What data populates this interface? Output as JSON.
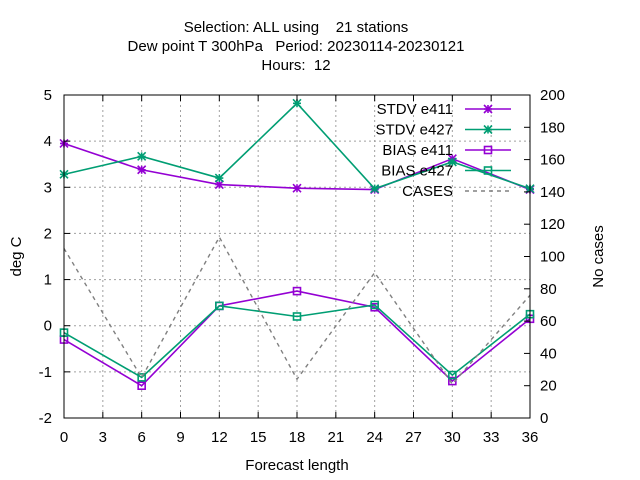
{
  "chart_data": {
    "type": "line",
    "title_lines": [
      "Selection: ALL using    21 stations",
      "Dew point T 300hPa   Period: 20230114-20230121",
      "Hours:  12"
    ],
    "xlabel": "Forecast length",
    "ylabel": "deg C",
    "y2label": "No cases",
    "x": [
      0,
      6,
      12,
      18,
      24,
      30,
      36
    ],
    "xlim": [
      0,
      36
    ],
    "xticks": [
      0,
      3,
      6,
      9,
      12,
      15,
      18,
      21,
      24,
      27,
      30,
      33,
      36
    ],
    "ylim": [
      -2,
      5
    ],
    "yticks": [
      -2,
      -1,
      0,
      1,
      2,
      3,
      4,
      5
    ],
    "y2lim": [
      0,
      200
    ],
    "y2ticks": [
      0,
      20,
      40,
      60,
      80,
      100,
      120,
      140,
      160,
      180,
      200
    ],
    "grid": true,
    "legend_position": "top-right",
    "series": [
      {
        "name": "STDV e411",
        "axis": "y",
        "color": "#9400d3",
        "marker": "x",
        "values": [
          3.95,
          3.38,
          3.06,
          2.98,
          2.95,
          3.62,
          2.95
        ]
      },
      {
        "name": "STDV e427",
        "axis": "y",
        "color": "#009e73",
        "marker": "x",
        "values": [
          3.28,
          3.67,
          3.2,
          4.82,
          2.97,
          3.55,
          2.97
        ]
      },
      {
        "name": "BIAS e411",
        "axis": "y",
        "color": "#9400d3",
        "marker": "square",
        "values": [
          -0.3,
          -1.3,
          0.43,
          0.75,
          0.4,
          -1.2,
          0.15
        ]
      },
      {
        "name": "BIAS e427",
        "axis": "y",
        "color": "#009e73",
        "marker": "square",
        "values": [
          -0.15,
          -1.12,
          0.43,
          0.2,
          0.45,
          -1.07,
          0.25
        ]
      },
      {
        "name": "CASES",
        "axis": "y2",
        "color": "#808080",
        "marker": "none",
        "dashed": true,
        "values": [
          105,
          25,
          112,
          24,
          90,
          21,
          76
        ]
      }
    ]
  }
}
